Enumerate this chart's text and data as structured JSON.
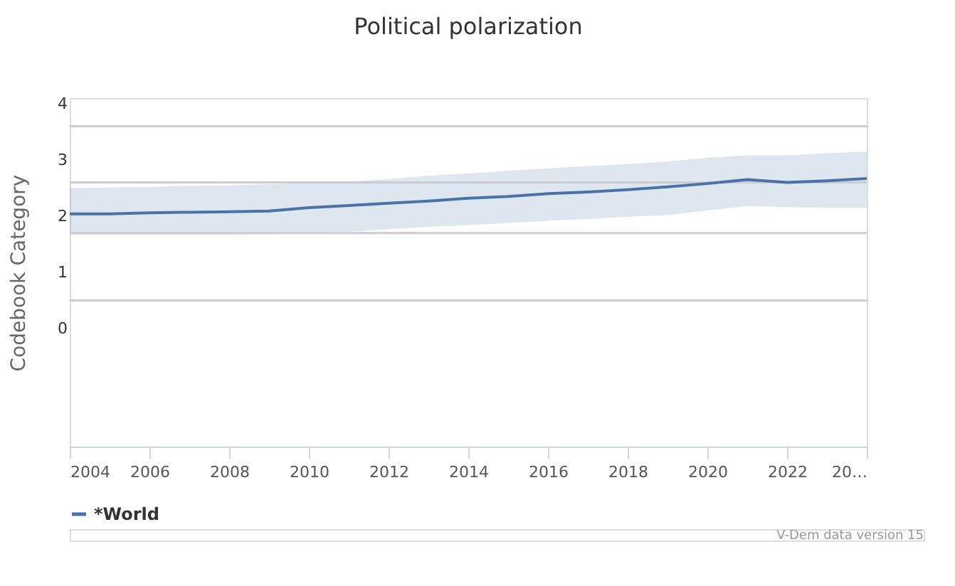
{
  "chart_data": {
    "type": "line",
    "title": "Political polarization",
    "ylabel": "Codebook Category",
    "x": [
      2004,
      2005,
      2006,
      2007,
      2008,
      2009,
      2010,
      2011,
      2012,
      2013,
      2014,
      2015,
      2016,
      2017,
      2018,
      2019,
      2020,
      2021,
      2022,
      2023,
      2024
    ],
    "series": [
      {
        "name": "*World",
        "color": "#4a72a8",
        "values": [
          2.04,
          2.04,
          2.06,
          2.07,
          2.08,
          2.09,
          2.15,
          2.19,
          2.23,
          2.27,
          2.32,
          2.35,
          2.4,
          2.43,
          2.47,
          2.52,
          2.58,
          2.65,
          2.6,
          2.63,
          2.67
        ],
        "lower": [
          1.67,
          1.67,
          1.67,
          1.67,
          1.67,
          1.68,
          1.7,
          1.72,
          1.77,
          1.81,
          1.84,
          1.88,
          1.92,
          1.95,
          1.99,
          2.02,
          2.1,
          2.18,
          2.16,
          2.15,
          2.15
        ],
        "upper": [
          2.5,
          2.51,
          2.52,
          2.54,
          2.55,
          2.57,
          2.59,
          2.61,
          2.66,
          2.72,
          2.76,
          2.81,
          2.85,
          2.89,
          2.93,
          2.97,
          3.04,
          3.08,
          3.08,
          3.12,
          3.15
        ]
      }
    ],
    "xlim": [
      2004,
      2024
    ],
    "xticks": [
      2004,
      2006,
      2008,
      2010,
      2012,
      2014,
      2016,
      2018,
      2020,
      2022,
      {
        "value": 2024,
        "label": "20…"
      }
    ],
    "ylim": [
      -2.1,
      4.1
    ],
    "yticks": [
      0,
      1,
      2,
      3,
      4
    ],
    "ref_lines": [
      {
        "axis": "y",
        "value": 3.6,
        "color": "#cccccc"
      },
      {
        "axis": "y",
        "value": 2.6,
        "color": "#cccccc"
      },
      {
        "axis": "y",
        "value": 1.7,
        "color": "#cccccc"
      },
      {
        "axis": "y",
        "value": 0.5,
        "color": "#cccccc"
      }
    ],
    "grid": false,
    "legend": "bottom",
    "marker": "none",
    "line_style": "solid",
    "annotations": [
      "V-Dem data version 15"
    ]
  }
}
